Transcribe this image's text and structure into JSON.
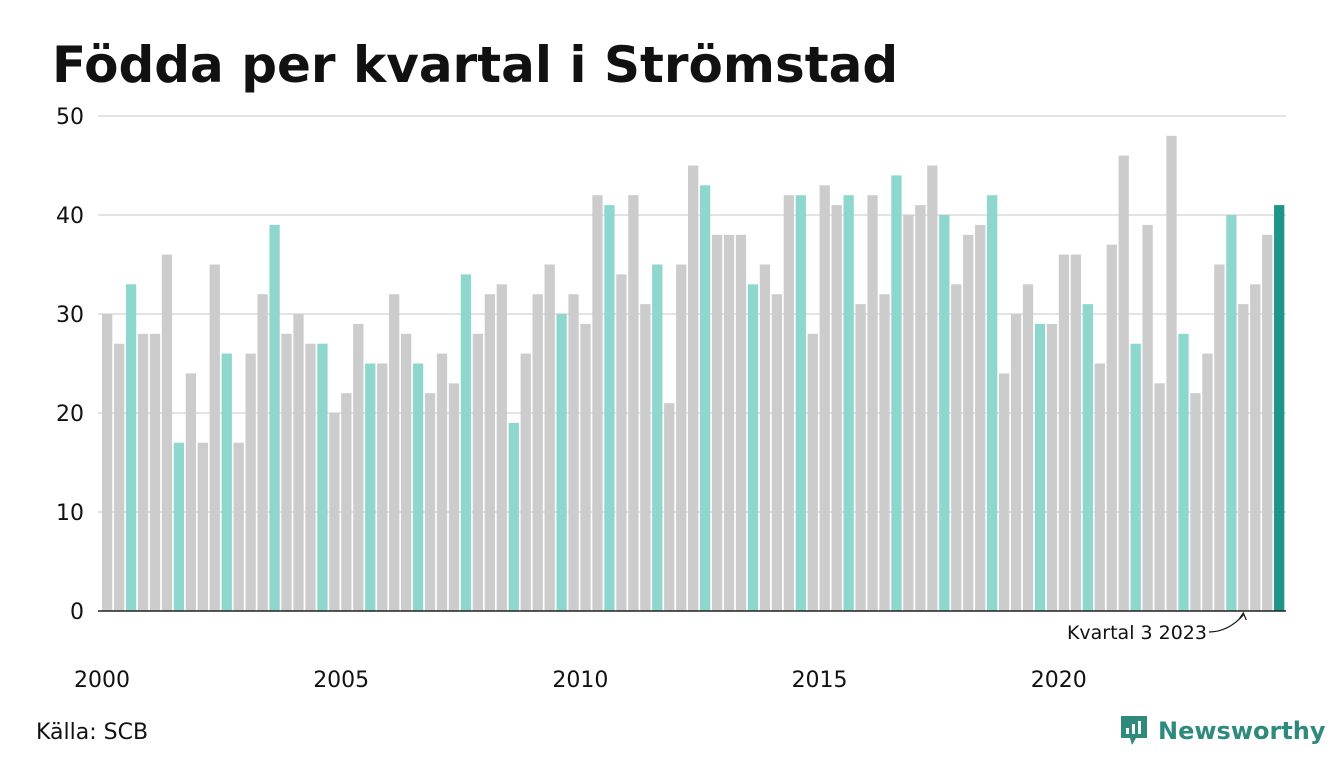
{
  "title": "Födda per kvartal i Strömstad",
  "source": "Källa: SCB",
  "brand": {
    "name": "Newsworthy",
    "icon": "newsworthy-logo-icon"
  },
  "colors": {
    "default": "#cccccc",
    "q3": "#8dd7cf",
    "latest": "#1f9488",
    "grid": "#e3e3e3",
    "axis": "#222222"
  },
  "chart_data": {
    "type": "bar",
    "title": "Födda per kvartal i Strömstad",
    "ylim": [
      0,
      50
    ],
    "yticks": [
      0,
      10,
      20,
      30,
      40,
      50
    ],
    "xtick_labels": [
      "2000",
      "2005",
      "2010",
      "2015",
      "2020"
    ],
    "grid": true,
    "start_year": 2000,
    "annotation": "Kvartal 3 2023",
    "values": [
      30,
      27,
      33,
      28,
      28,
      36,
      17,
      24,
      17,
      35,
      26,
      17,
      26,
      32,
      39,
      28,
      30,
      27,
      27,
      20,
      22,
      29,
      25,
      25,
      32,
      28,
      25,
      22,
      26,
      23,
      34,
      28,
      32,
      33,
      19,
      26,
      32,
      35,
      30,
      32,
      29,
      42,
      41,
      34,
      42,
      31,
      35,
      21,
      35,
      45,
      43,
      38,
      38,
      38,
      33,
      35,
      32,
      42,
      42,
      28,
      43,
      41,
      42,
      31,
      42,
      32,
      44,
      40,
      41,
      45,
      40,
      33,
      38,
      39,
      42,
      24,
      30,
      33,
      29,
      29,
      36,
      36,
      31,
      25,
      37,
      46,
      27,
      39,
      23,
      48,
      28,
      22,
      26,
      35,
      40,
      31,
      33,
      38,
      41
    ]
  }
}
